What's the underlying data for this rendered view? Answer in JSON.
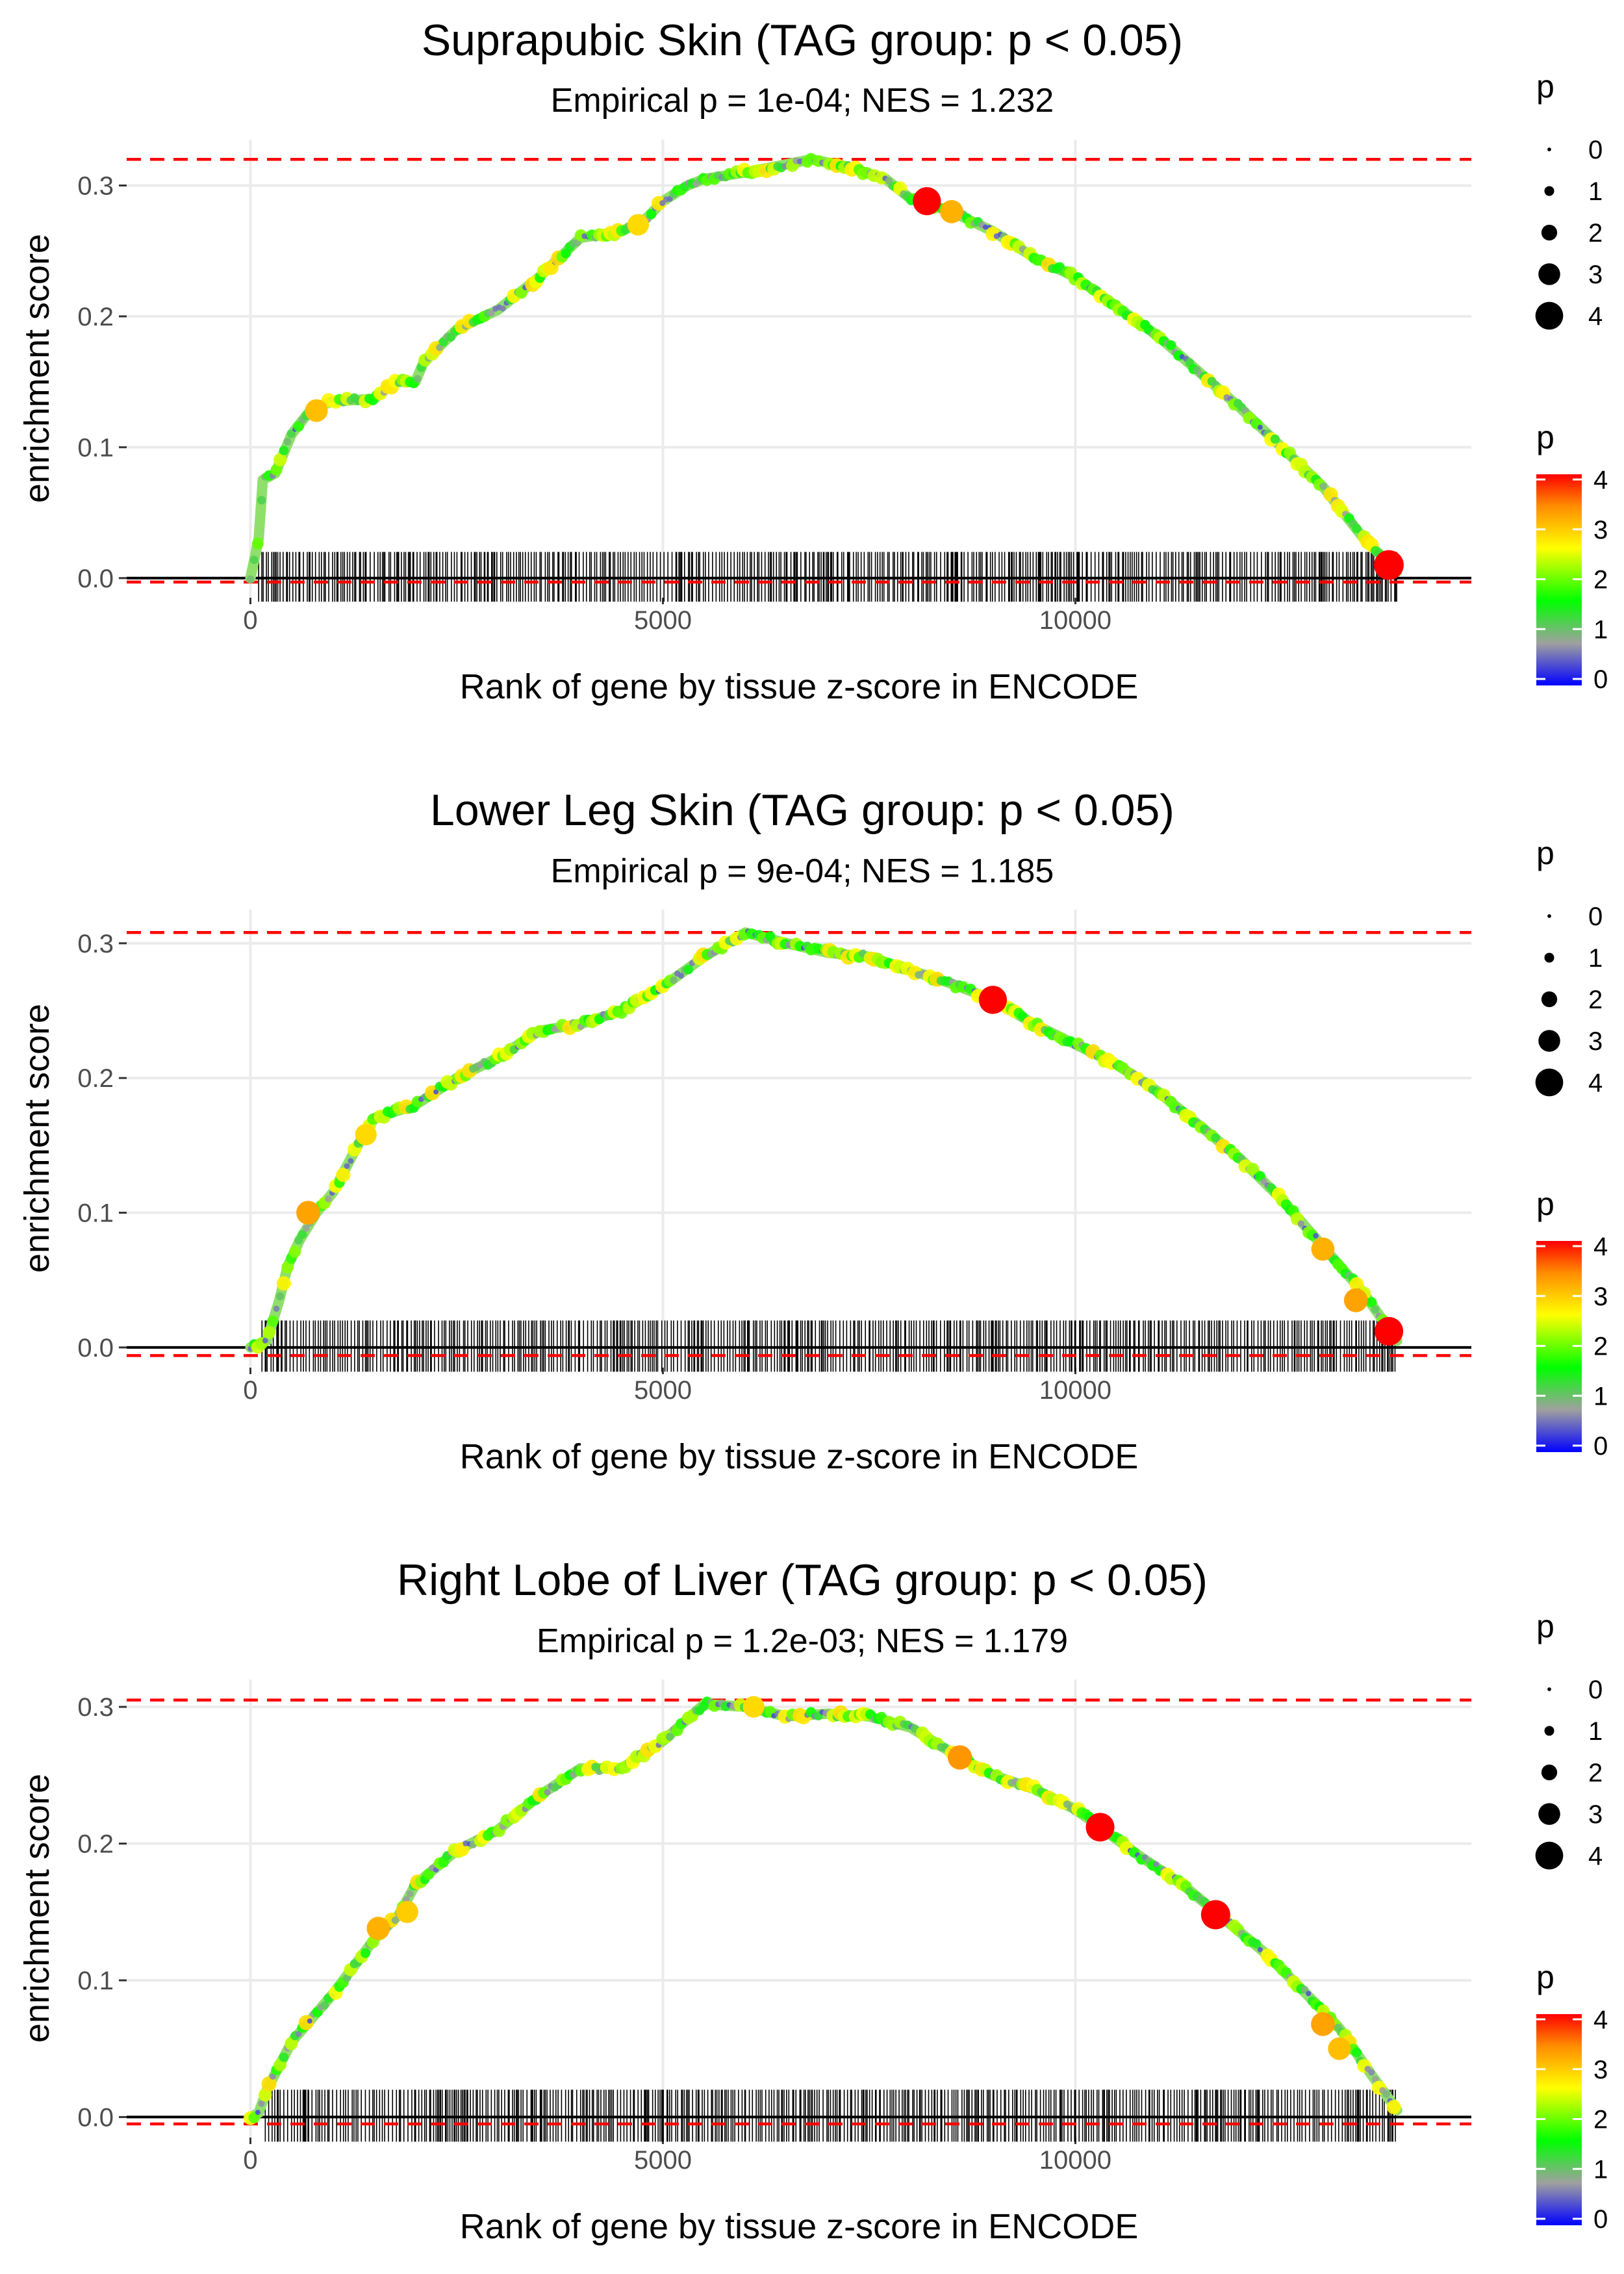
{
  "chart_data": [
    {
      "type": "line",
      "title": "Suprapubic Skin (TAG group: p < 0.05)",
      "subtitle": "Empirical p = 1e-04; NES = 1.232",
      "xlabel": "Rank of gene by tissue z-score in ENCODE",
      "ylabel": "enrichment score",
      "xlim": [
        -1500,
        14800
      ],
      "ylim": [
        -0.015,
        0.335
      ],
      "xticks": [
        0,
        5000,
        10000
      ],
      "xtick_labels": [
        "0",
        "5000",
        "10000"
      ],
      "yticks": [
        0.0,
        0.1,
        0.2,
        0.3
      ],
      "ytick_labels": [
        "0.0",
        "0.1",
        "0.2",
        "0.3"
      ],
      "max_es": 0.32,
      "min_es": -0.003,
      "max_es_hline": 0.32,
      "min_es_hline": -0.003,
      "curve": {
        "x": [
          0,
          100,
          150,
          300,
          500,
          750,
          1000,
          1500,
          1750,
          2000,
          2100,
          2500,
          3000,
          3500,
          4000,
          4500,
          4800,
          5000,
          5300,
          5500,
          6000,
          6400,
          6800,
          7200,
          7700,
          8000,
          8500,
          9000,
          9500,
          10000,
          11000,
          12000,
          13000,
          13500,
          13900
        ],
        "y": [
          0.0,
          0.03,
          0.075,
          0.08,
          0.11,
          0.13,
          0.135,
          0.137,
          0.15,
          0.15,
          0.165,
          0.19,
          0.205,
          0.23,
          0.26,
          0.265,
          0.275,
          0.288,
          0.3,
          0.305,
          0.31,
          0.315,
          0.32,
          0.315,
          0.305,
          0.29,
          0.28,
          0.265,
          0.245,
          0.23,
          0.185,
          0.13,
          0.07,
          0.03,
          0.005
        ]
      },
      "highlight_points": [
        {
          "x": 800,
          "y": 0.128,
          "p": 3.2
        },
        {
          "x": 4700,
          "y": 0.27,
          "p": 3.0
        },
        {
          "x": 8200,
          "y": 0.288,
          "p": 4.2
        },
        {
          "x": 8500,
          "y": 0.28,
          "p": 3.3
        },
        {
          "x": 13800,
          "y": 0.01,
          "p": 4.5
        }
      ],
      "legend": {
        "size_title": "p",
        "size_labels": [
          "0",
          "1",
          "2",
          "3",
          "4"
        ],
        "color_title": "p",
        "color_labels": [
          "0",
          "1",
          "2",
          "3",
          "4"
        ]
      }
    },
    {
      "type": "line",
      "title": "Lower Leg Skin (TAG group: p < 0.05)",
      "subtitle": "Empirical p = 9e-04; NES = 1.185",
      "xlabel": "Rank of gene by tissue z-score in ENCODE",
      "ylabel": "enrichment score",
      "xlim": [
        -1500,
        14800
      ],
      "ylim": [
        -0.015,
        0.325
      ],
      "xticks": [
        0,
        5000,
        10000
      ],
      "xtick_labels": [
        "0",
        "5000",
        "10000"
      ],
      "yticks": [
        0.0,
        0.1,
        0.2,
        0.3
      ],
      "ytick_labels": [
        "0.0",
        "0.1",
        "0.2",
        "0.3"
      ],
      "max_es": 0.308,
      "min_es": -0.006,
      "max_es_hline": 0.308,
      "min_es_hline": -0.006,
      "curve": {
        "x": [
          0,
          200,
          350,
          450,
          600,
          800,
          1000,
          1300,
          1500,
          2000,
          2500,
          3000,
          3500,
          4000,
          4500,
          5000,
          5500,
          6000,
          6500,
          7000,
          7500,
          8000,
          8500,
          9000,
          9500,
          10000,
          10500,
          11000,
          11500,
          12000,
          12500,
          13000,
          13500,
          13900
        ],
        "y": [
          0.0,
          0.005,
          0.035,
          0.06,
          0.08,
          0.1,
          0.115,
          0.15,
          0.17,
          0.18,
          0.2,
          0.215,
          0.235,
          0.24,
          0.25,
          0.268,
          0.29,
          0.308,
          0.3,
          0.293,
          0.29,
          0.28,
          0.27,
          0.258,
          0.24,
          0.225,
          0.21,
          0.19,
          0.165,
          0.14,
          0.11,
          0.075,
          0.04,
          0.005
        ]
      },
      "highlight_points": [
        {
          "x": 700,
          "y": 0.1,
          "p": 3.4
        },
        {
          "x": 1400,
          "y": 0.158,
          "p": 3.0
        },
        {
          "x": 9000,
          "y": 0.258,
          "p": 4.2
        },
        {
          "x": 13000,
          "y": 0.073,
          "p": 3.3
        },
        {
          "x": 13400,
          "y": 0.035,
          "p": 3.4
        },
        {
          "x": 13800,
          "y": 0.012,
          "p": 4.3
        }
      ],
      "legend": {
        "size_title": "p",
        "size_labels": [
          "0",
          "1",
          "2",
          "3",
          "4"
        ],
        "color_title": "p",
        "color_labels": [
          "0",
          "1",
          "2",
          "3",
          "4"
        ]
      }
    },
    {
      "type": "line",
      "title": "Right Lobe of Liver (TAG group: p < 0.05)",
      "subtitle": "Empirical p = 1.2e-03; NES = 1.179",
      "xlabel": "Rank of gene by tissue z-score in ENCODE",
      "ylabel": "enrichment score",
      "xlim": [
        -1500,
        14800
      ],
      "ylim": [
        -0.015,
        0.32
      ],
      "xticks": [
        0,
        5000,
        10000
      ],
      "xtick_labels": [
        "0",
        "5000",
        "10000"
      ],
      "yticks": [
        0.0,
        0.1,
        0.2,
        0.3
      ],
      "ytick_labels": [
        "0.0",
        "0.1",
        "0.2",
        "0.3"
      ],
      "max_es": 0.305,
      "min_es": -0.005,
      "max_es_hline": 0.305,
      "min_es_hline": -0.005,
      "curve": {
        "x": [
          0,
          100,
          200,
          500,
          1000,
          1500,
          1800,
          2000,
          2500,
          3000,
          3500,
          4000,
          4500,
          5000,
          5500,
          6000,
          6500,
          7000,
          7500,
          8000,
          8600,
          9000,
          9500,
          10000,
          10300,
          10800,
          11300,
          11800,
          12300,
          12800,
          13200,
          13600,
          13900
        ],
        "y": [
          0.0,
          0.003,
          0.02,
          0.055,
          0.09,
          0.13,
          0.148,
          0.17,
          0.195,
          0.21,
          0.235,
          0.255,
          0.255,
          0.275,
          0.302,
          0.3,
          0.293,
          0.295,
          0.293,
          0.285,
          0.263,
          0.25,
          0.24,
          0.225,
          0.212,
          0.19,
          0.17,
          0.145,
          0.12,
          0.09,
          0.065,
          0.03,
          0.005
        ]
      },
      "highlight_points": [
        {
          "x": 1550,
          "y": 0.138,
          "p": 3.3
        },
        {
          "x": 1900,
          "y": 0.15,
          "p": 3.1
        },
        {
          "x": 6100,
          "y": 0.3,
          "p": 3.0
        },
        {
          "x": 8600,
          "y": 0.263,
          "p": 3.5
        },
        {
          "x": 10300,
          "y": 0.212,
          "p": 4.3
        },
        {
          "x": 11700,
          "y": 0.148,
          "p": 4.4
        },
        {
          "x": 13000,
          "y": 0.068,
          "p": 3.4
        },
        {
          "x": 13200,
          "y": 0.05,
          "p": 3.2
        }
      ],
      "legend": {
        "size_title": "p",
        "size_labels": [
          "0",
          "1",
          "2",
          "3",
          "4"
        ],
        "color_title": "p",
        "color_labels": [
          "0",
          "1",
          "2",
          "3",
          "4"
        ]
      }
    }
  ],
  "colors": {
    "curve_base": "#8fe06a",
    "hline": "#ff0000",
    "grid": "#ebebeb",
    "zero_line": "#000000",
    "rug": "#000000",
    "gradient": [
      "#0000ff",
      "#a0a0a0",
      "#00ff00",
      "#ffff00",
      "#ff8c00",
      "#ff0000"
    ]
  }
}
